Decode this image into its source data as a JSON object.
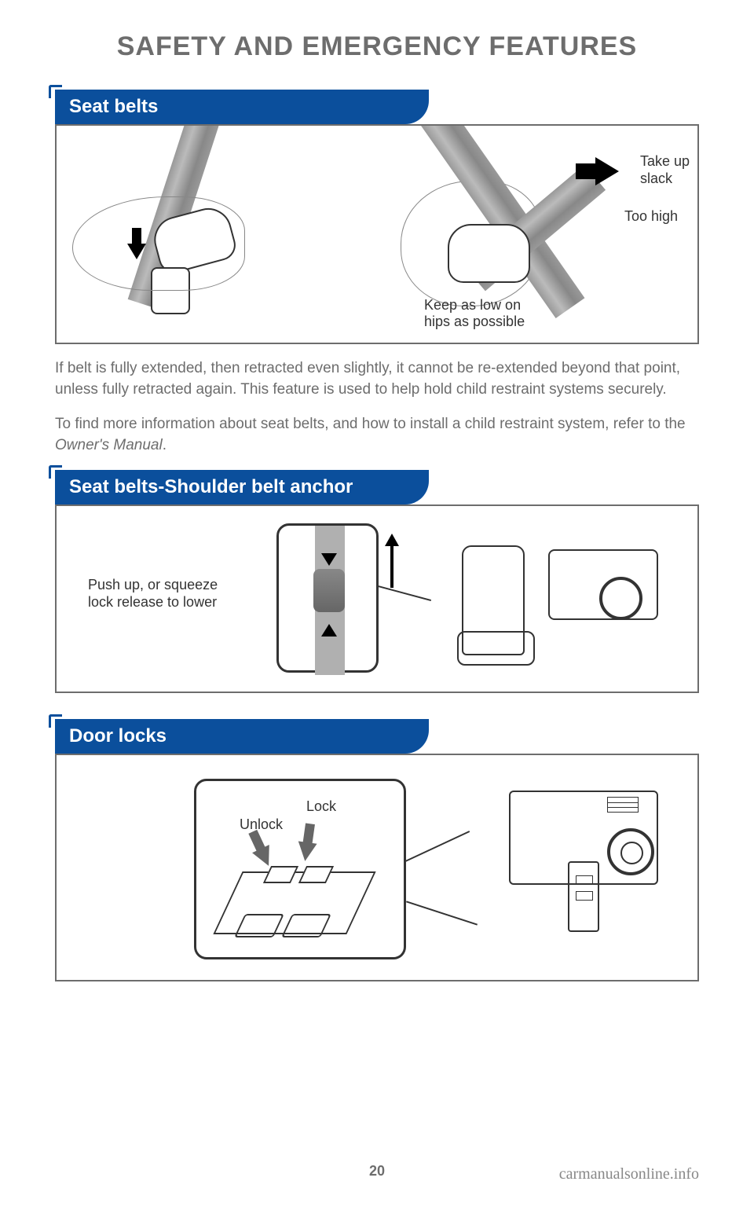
{
  "page_title": "SAFETY AND EMERGENCY FEATURES",
  "sections": {
    "seat_belts": {
      "header": "Seat belts",
      "labels": {
        "take_up_slack": "Take up\nslack",
        "too_high": "Too high",
        "keep_low": "Keep as low on\nhips as possible"
      },
      "paragraph1": "If belt is fully extended, then retracted even slightly, it cannot be re-extended beyond that point, unless fully retracted again. This feature is used to help hold child restraint systems securely.",
      "paragraph2_prefix": "To find more information about seat belts, and how to install a child restraint system, refer to the ",
      "paragraph2_italic": "Owner's Manual",
      "paragraph2_suffix": "."
    },
    "shoulder_anchor": {
      "header": "Seat belts-Shoulder belt anchor",
      "label": "Push up, or squeeze\nlock release to lower"
    },
    "door_locks": {
      "header": "Door locks",
      "labels": {
        "lock": "Lock",
        "unlock": "Unlock"
      }
    }
  },
  "page_number": "20",
  "watermark": "carmanualsonline.info",
  "colors": {
    "header_blue": "#0b4f9c",
    "text_gray": "#6d6d6d",
    "border_gray": "#6d6d6d",
    "black": "#000000",
    "white": "#ffffff"
  },
  "typography": {
    "title_size": 34,
    "header_size": 24,
    "body_size": 19,
    "label_size": 18
  }
}
